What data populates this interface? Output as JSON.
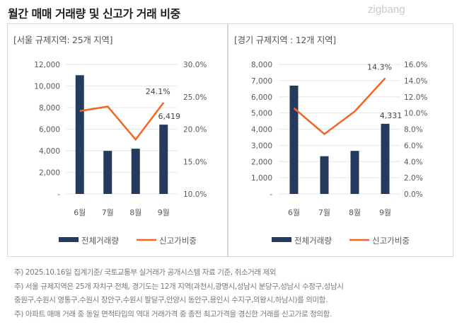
{
  "title": "월간 매매 거래량 및 신고가 거래 비중",
  "logo": "zigbang",
  "legend": {
    "bar": "전체거래량",
    "line": "신고가비중"
  },
  "colors": {
    "bar": "#243a5e",
    "line": "#f26522",
    "grid": "#e6e6e6",
    "text": "#595959"
  },
  "notes": [
    "주) 2025.10.16일 집계기준/ 국토교통부 실거래가 공개시스템 자료 기준, 취소거래 제외",
    "주) 서울 규제지역은 25개 자치구 전체, 경기도는  12개 지역(과천시,광명시,성남시 분당구,성남시 수정구,성남시",
    "중원구,수원시 영통구,수원시 장안구,수원시 팔달구,안양시 동안구,용인시 수지구,의왕시,하남시)를 의미함.",
    "주) 아파트 매매 거래 중 동일 면적타입의 역대 거래가격 중 종전 최고가격을 경신한 거래를 신고가로 정의함."
  ],
  "chart_data": [
    {
      "type": "bar+line",
      "title": "[서울 규제지역: 25개 지역]",
      "categories": [
        "6월",
        "7월",
        "8월",
        "9월"
      ],
      "series": [
        {
          "name": "전체거래량",
          "type": "bar",
          "axis": "left",
          "values": [
            11000,
            3990,
            4190,
            6419
          ]
        },
        {
          "name": "신고가비중",
          "type": "line",
          "axis": "right",
          "values": [
            22.8,
            23.5,
            18.4,
            24.1
          ]
        }
      ],
      "ylim_left": [
        0,
        12000
      ],
      "yticks_left": [
        "-",
        "2,000",
        "4,000",
        "6,000",
        "8,000",
        "10,000",
        "12,000"
      ],
      "ylim_right": [
        10,
        30
      ],
      "yticks_right": [
        "10.0%",
        "15.0%",
        "20.0%",
        "25.0%",
        "30.0%"
      ],
      "data_labels": {
        "bar_last": "6,419",
        "line_last": "24.1%"
      },
      "grid": true,
      "legend": "bottom"
    },
    {
      "type": "bar+line",
      "title": "[경기 규제지역 : 12개 지역]",
      "categories": [
        "6월",
        "7월",
        "8월",
        "9월"
      ],
      "series": [
        {
          "name": "전체거래량",
          "type": "bar",
          "axis": "left",
          "values": [
            6690,
            2330,
            2660,
            4331
          ]
        },
        {
          "name": "신고가비중",
          "type": "line",
          "axis": "right",
          "values": [
            10.6,
            7.4,
            10.2,
            14.3
          ]
        }
      ],
      "ylim_left": [
        0,
        8000
      ],
      "yticks_left": [
        "-",
        "1,000",
        "2,000",
        "3,000",
        "4,000",
        "5,000",
        "6,000",
        "7,000",
        "8,000"
      ],
      "ylim_right": [
        0,
        16
      ],
      "yticks_right": [
        "0.0%",
        "2.0%",
        "4.0%",
        "6.0%",
        "8.0%",
        "10.0%",
        "12.0%",
        "14.0%",
        "16.0%"
      ],
      "data_labels": {
        "bar_last": "4,331",
        "line_last": "14.3%"
      },
      "grid": true,
      "legend": "bottom"
    }
  ]
}
